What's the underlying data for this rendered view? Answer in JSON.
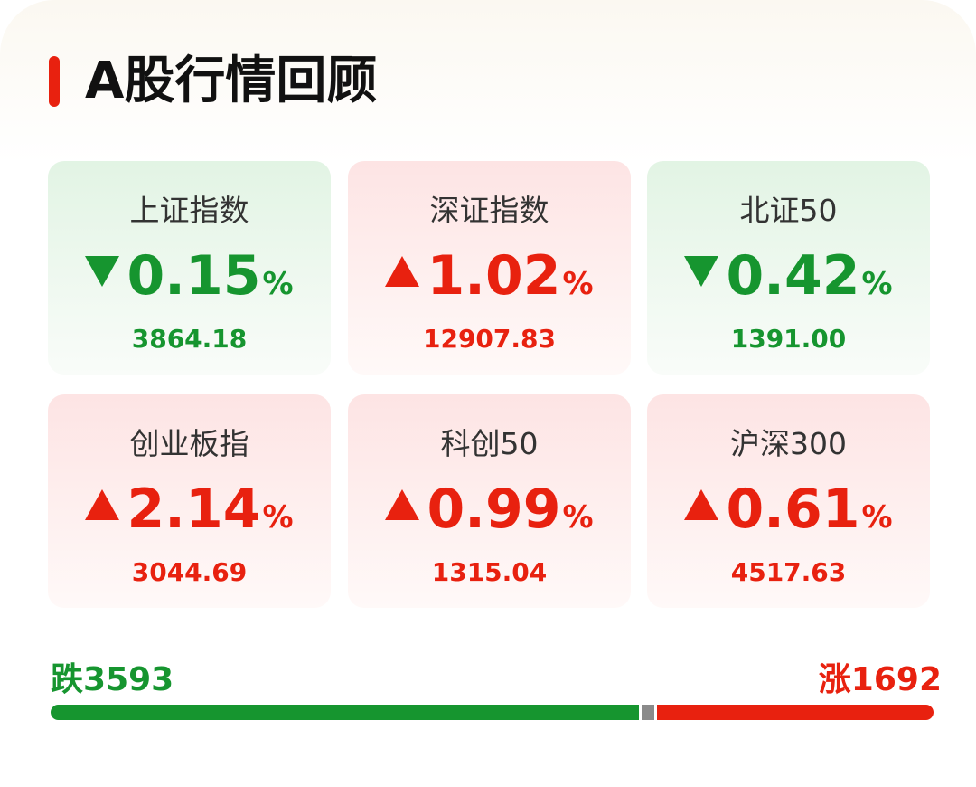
{
  "header": {
    "title": "A股行情回顾"
  },
  "cards": [
    {
      "name": "上证指数",
      "direction": "down",
      "change": "0.15",
      "unit": "%",
      "value": "3864.18"
    },
    {
      "name": "深证指数",
      "direction": "up",
      "change": "1.02",
      "unit": "%",
      "value": "12907.83"
    },
    {
      "name": "北证50",
      "direction": "down",
      "change": "0.42",
      "unit": "%",
      "value": "1391.00"
    },
    {
      "name": "创业板指",
      "direction": "up",
      "change": "2.14",
      "unit": "%",
      "value": "3044.69"
    },
    {
      "name": "科创50",
      "direction": "up",
      "change": "0.99",
      "unit": "%",
      "value": "1315.04"
    },
    {
      "name": "沪深300",
      "direction": "up",
      "change": "0.61",
      "unit": "%",
      "value": "4517.63"
    }
  ],
  "breadth": {
    "down": {
      "label": "跌",
      "count": 3593
    },
    "up": {
      "label": "涨",
      "count": 1692
    }
  }
}
